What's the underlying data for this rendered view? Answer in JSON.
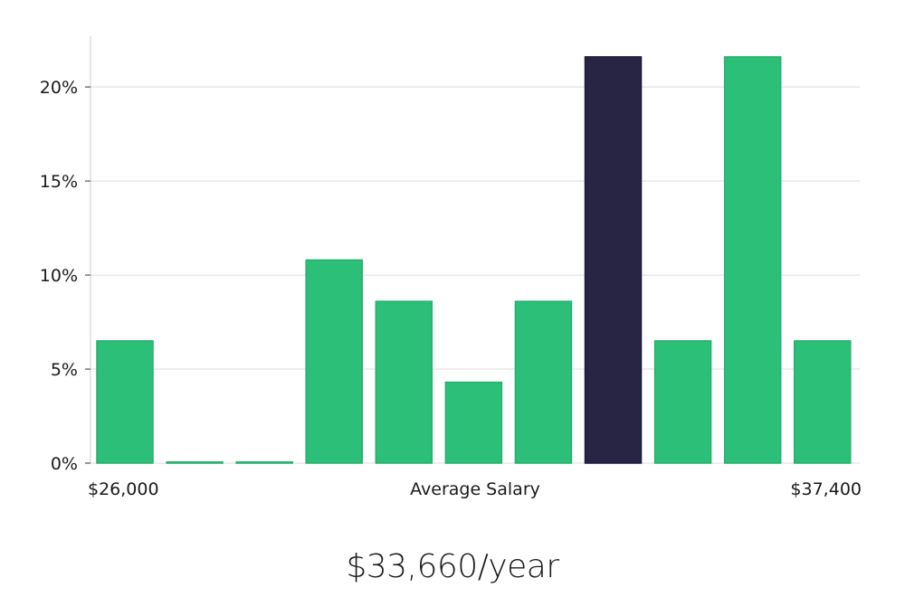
{
  "salary_display": "$33,660/year",
  "colors": {
    "bar": "#2bbf78",
    "highlight": "#272444",
    "grid": "#dcdcdc",
    "axis": "#cccccc"
  },
  "chart_data": {
    "type": "bar",
    "values": [
      6.5,
      0,
      0,
      10.8,
      8.6,
      4.3,
      8.6,
      21.6,
      6.5,
      21.6,
      6.5
    ],
    "highlight_index": 7,
    "yticks": [
      "0%",
      "5%",
      "10%",
      "15%",
      "20%"
    ],
    "ytick_values": [
      0,
      5,
      10,
      15,
      20
    ],
    "ylim": [
      0,
      22.7
    ],
    "xlabel_left": "$26,000",
    "xlabel_center": "Average Salary",
    "xlabel_right": "$37,400",
    "grid": true
  }
}
